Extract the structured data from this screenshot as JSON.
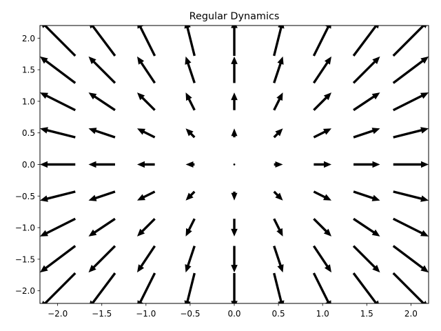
{
  "chart_data": {
    "type": "quiver",
    "title": "Regular Dynamics",
    "xlabel": "",
    "ylabel": "",
    "xlim": [
      -2.2,
      2.2
    ],
    "ylim": [
      -2.2,
      2.2
    ],
    "grid": false,
    "x_ticks": [
      -2.0,
      -1.5,
      -1.0,
      -0.5,
      0.0,
      0.5,
      1.0,
      1.5,
      2.0
    ],
    "x_tick_labels": [
      "−2.0",
      "−1.5",
      "−1.0",
      "−0.5",
      "0.0",
      "0.5",
      "1.0",
      "1.5",
      "2.0"
    ],
    "y_ticks": [
      -2.0,
      -1.5,
      -1.0,
      -0.5,
      0.0,
      0.5,
      1.0,
      1.5,
      2.0
    ],
    "y_tick_labels": [
      "−2.0",
      "−1.5",
      "−1.0",
      "−0.5",
      "0.0",
      "0.5",
      "1.0",
      "1.5",
      "2.0"
    ],
    "grid_x": [
      -2.0,
      -1.5,
      -1.0,
      -0.5,
      0.0,
      0.5,
      1.0,
      1.5,
      2.0
    ],
    "grid_y": [
      -2.0,
      -1.5,
      -1.0,
      -0.5,
      0.0,
      0.5,
      1.0,
      1.5,
      2.0
    ],
    "vector_field": "u = x, v = y (radial outward from origin)",
    "arrow_scale": 0.2
  }
}
